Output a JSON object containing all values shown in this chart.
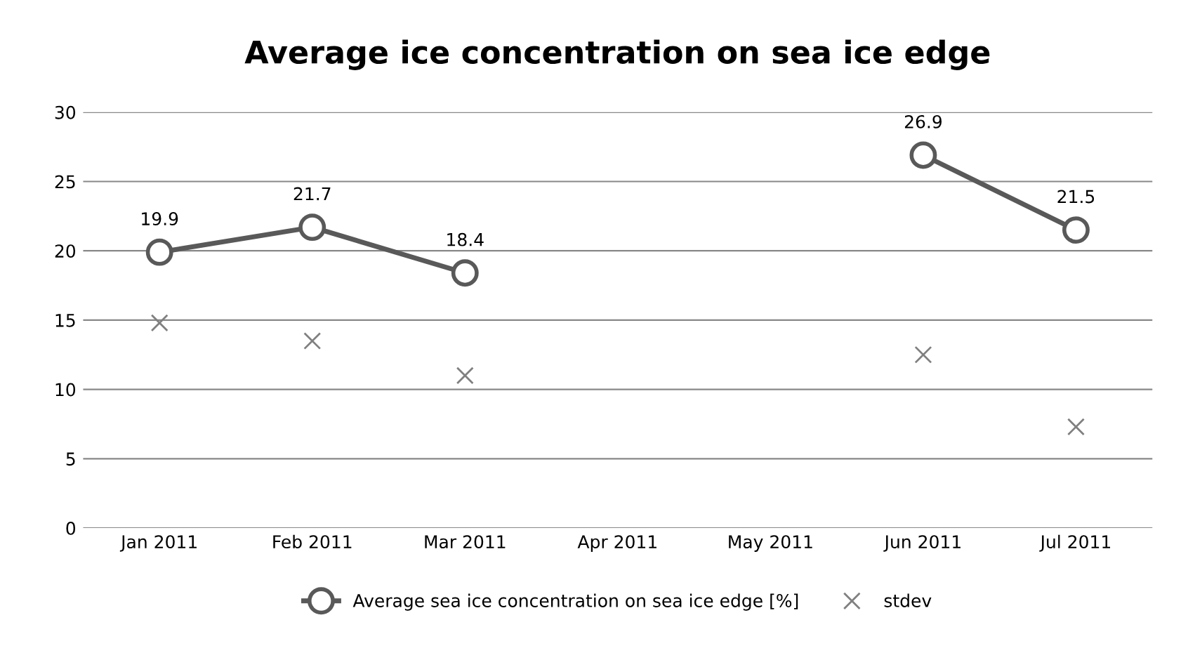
{
  "chart_data": {
    "type": "line",
    "title": "Average ice concentration on sea ice edge",
    "categories": [
      "Jan 2011",
      "Feb 2011",
      "Mar 2011",
      "Apr 2011",
      "May 2011",
      "Jun 2011",
      "Jul 2011"
    ],
    "series": [
      {
        "name": "Average sea ice concentration on sea ice edge [%]",
        "marker": "circle",
        "color": "#595959",
        "values": [
          19.9,
          21.7,
          18.4,
          null,
          null,
          26.9,
          21.5
        ],
        "value_labels": [
          "19.9",
          "21.7",
          "18.4",
          null,
          null,
          "26.9",
          "21.5"
        ]
      },
      {
        "name": "stdev",
        "type": "scatter",
        "marker": "cross",
        "color": "#808080",
        "values": [
          14.8,
          13.5,
          11.0,
          null,
          null,
          12.5,
          7.3
        ]
      }
    ],
    "ylim": [
      0,
      30
    ],
    "yticks": [
      0,
      5,
      10,
      15,
      20,
      25,
      30
    ],
    "grid": "y",
    "legend": "bottom"
  }
}
